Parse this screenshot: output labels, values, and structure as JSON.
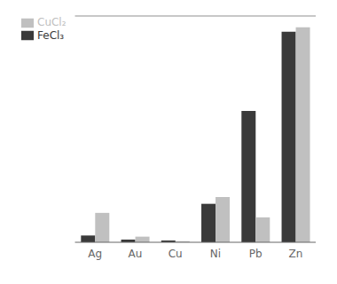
{
  "chart_data": {
    "type": "bar",
    "categories": [
      "Ag",
      "Au",
      "Cu",
      "Ni",
      "Pb",
      "Zn"
    ],
    "series": [
      {
        "name": "FeCl₃",
        "color": "#3a3a3a",
        "values": [
          3,
          1.2,
          0.8,
          17,
          58,
          93
        ]
      },
      {
        "name": "CuCl₂",
        "color": "#c0c0c0",
        "values": [
          13,
          2.5,
          0.5,
          20,
          11,
          95
        ]
      }
    ],
    "ylim": [
      0,
      100
    ],
    "tick_labels": "x",
    "legend": "upper left"
  }
}
